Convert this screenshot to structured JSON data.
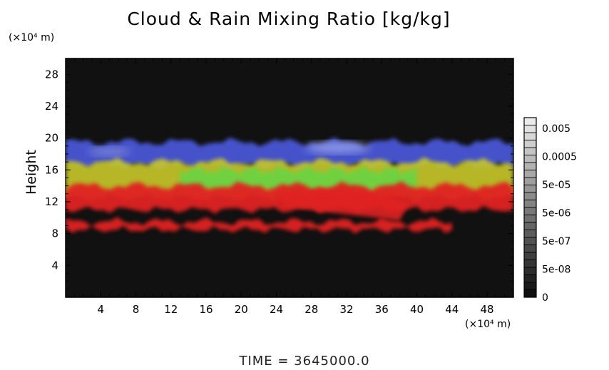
{
  "chart_data": {
    "type": "heatmap",
    "title": "Cloud & Rain Mixing Ratio [kg/kg]",
    "ylabel": "Height",
    "x_unit": "(×10⁴ m)",
    "y_unit": "(×10⁴ m)",
    "xlim": [
      0,
      51
    ],
    "ylim": [
      0,
      30
    ],
    "x_ticks": [
      4,
      8,
      12,
      16,
      20,
      24,
      28,
      32,
      36,
      40,
      44,
      48
    ],
    "y_ticks": [
      4,
      8,
      12,
      16,
      20,
      24,
      28
    ],
    "colorbar": {
      "ticks": [
        "0.005",
        "0.0005",
        "5e-05",
        "5e-06",
        "5e-07",
        "5e-08",
        "0"
      ],
      "levels": 24
    },
    "background_color": "#111111",
    "layers": [
      {
        "color": "#4c5adf",
        "height_range": [
          16.5,
          19.5
        ]
      },
      {
        "color": "#c8c82a",
        "height_range": [
          12.5,
          17
        ]
      },
      {
        "color": "#5fd846",
        "height_range": [
          13.5,
          16
        ]
      },
      {
        "color": "#e02020",
        "height_range": [
          11,
          14
        ]
      },
      {
        "color": "#e02020",
        "height_range": [
          8.5,
          9.5
        ]
      }
    ]
  },
  "footer": "TIME  =  3645000.0"
}
